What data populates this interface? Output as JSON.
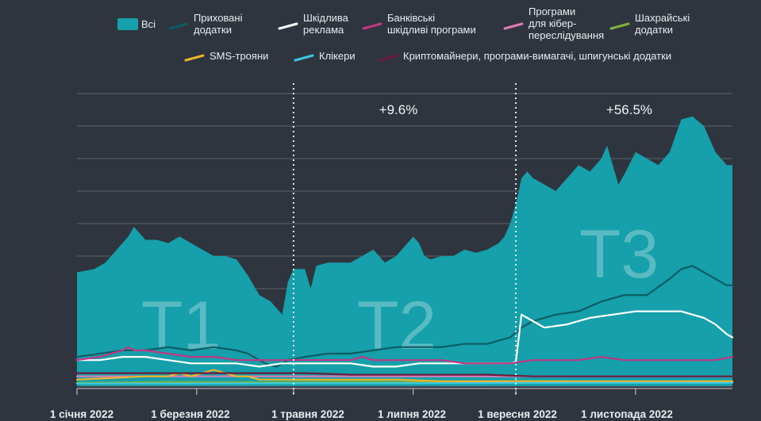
{
  "chart_data": {
    "type": "area",
    "title": "",
    "xlabel": "",
    "ylabel": "",
    "ylim": [
      0,
      90
    ],
    "grid": true,
    "legend_position": "top",
    "x_ticks": [
      "1 січня 2022",
      "1 березня 2022",
      "1 травня 2022",
      "1 липня 2022",
      "1 вересня 2022",
      "1 листопада 2022"
    ],
    "dividers": [
      "1 травня 2022",
      "1 вересня 2022"
    ],
    "periods": [
      {
        "label": "T1",
        "change": ""
      },
      {
        "label": "T2",
        "change": "+9.6%"
      },
      {
        "label": "T3",
        "change": "+56.5%"
      }
    ],
    "series": [
      {
        "name": "Всі",
        "color": "#15a0ab",
        "style": "area",
        "points": [
          [
            0,
            35
          ],
          [
            3,
            36
          ],
          [
            5,
            38
          ],
          [
            7,
            42
          ],
          [
            9,
            46
          ],
          [
            10,
            49
          ],
          [
            11,
            47
          ],
          [
            12,
            45
          ],
          [
            14,
            45
          ],
          [
            16,
            44
          ],
          [
            18,
            46
          ],
          [
            20,
            44
          ],
          [
            22,
            42
          ],
          [
            24,
            40
          ],
          [
            26,
            40
          ],
          [
            28,
            39
          ],
          [
            30,
            34
          ],
          [
            32,
            28
          ],
          [
            33,
            27
          ],
          [
            34,
            26
          ],
          [
            35,
            24
          ],
          [
            36,
            22
          ],
          [
            37,
            32
          ],
          [
            38,
            36
          ],
          [
            40,
            36
          ],
          [
            41,
            30
          ],
          [
            42,
            37
          ],
          [
            44,
            38
          ],
          [
            46,
            38
          ],
          [
            48,
            38
          ],
          [
            50,
            40
          ],
          [
            52,
            42
          ],
          [
            54,
            38
          ],
          [
            56,
            40
          ],
          [
            58,
            44
          ],
          [
            59,
            46
          ],
          [
            60,
            44
          ],
          [
            61,
            40
          ],
          [
            62,
            39
          ],
          [
            64,
            40
          ],
          [
            66,
            40
          ],
          [
            68,
            42
          ],
          [
            70,
            41
          ],
          [
            72,
            42
          ],
          [
            74,
            44
          ],
          [
            75,
            46
          ],
          [
            76,
            50
          ],
          [
            77,
            56
          ],
          [
            78,
            64
          ],
          [
            79,
            66
          ],
          [
            80,
            64
          ],
          [
            82,
            62
          ],
          [
            84,
            60
          ],
          [
            86,
            64
          ],
          [
            88,
            68
          ],
          [
            90,
            66
          ],
          [
            92,
            70
          ],
          [
            93,
            74
          ],
          [
            94,
            68
          ],
          [
            95,
            62
          ],
          [
            96,
            65
          ],
          [
            98,
            72
          ],
          [
            100,
            70
          ],
          [
            102,
            68
          ],
          [
            104,
            72
          ],
          [
            106,
            82
          ],
          [
            108,
            83
          ],
          [
            110,
            80
          ],
          [
            112,
            72
          ],
          [
            114,
            68
          ],
          [
            115,
            68
          ]
        ]
      },
      {
        "name": "Приховані додатки",
        "color": "#0d5c64",
        "style": "line",
        "points": [
          [
            0,
            9
          ],
          [
            4,
            10
          ],
          [
            8,
            11
          ],
          [
            12,
            11
          ],
          [
            16,
            12
          ],
          [
            20,
            11
          ],
          [
            24,
            12
          ],
          [
            28,
            11
          ],
          [
            30,
            10
          ],
          [
            33,
            7
          ],
          [
            35,
            6
          ],
          [
            37,
            8
          ],
          [
            40,
            9
          ],
          [
            44,
            10
          ],
          [
            48,
            10
          ],
          [
            52,
            11
          ],
          [
            56,
            12
          ],
          [
            60,
            12
          ],
          [
            64,
            12
          ],
          [
            68,
            13
          ],
          [
            72,
            13
          ],
          [
            76,
            15
          ],
          [
            78,
            18
          ],
          [
            80,
            20
          ],
          [
            84,
            22
          ],
          [
            88,
            23
          ],
          [
            92,
            26
          ],
          [
            96,
            28
          ],
          [
            100,
            28
          ],
          [
            104,
            33
          ],
          [
            106,
            36
          ],
          [
            108,
            37
          ],
          [
            110,
            35
          ],
          [
            112,
            33
          ],
          [
            114,
            31
          ],
          [
            115,
            31
          ]
        ]
      },
      {
        "name": "Шкідлива реклама",
        "color": "#ffffff",
        "style": "line",
        "points": [
          [
            0,
            8
          ],
          [
            4,
            8
          ],
          [
            8,
            9
          ],
          [
            12,
            9
          ],
          [
            16,
            8
          ],
          [
            20,
            7
          ],
          [
            24,
            7
          ],
          [
            28,
            7
          ],
          [
            32,
            6
          ],
          [
            36,
            7
          ],
          [
            40,
            7
          ],
          [
            44,
            7
          ],
          [
            48,
            7
          ],
          [
            52,
            6
          ],
          [
            56,
            6
          ],
          [
            60,
            7
          ],
          [
            64,
            7
          ],
          [
            68,
            7
          ],
          [
            72,
            7
          ],
          [
            76,
            7
          ],
          [
            77,
            7.5
          ],
          [
            78,
            22
          ],
          [
            80,
            20
          ],
          [
            82,
            18
          ],
          [
            86,
            19
          ],
          [
            90,
            21
          ],
          [
            94,
            22
          ],
          [
            98,
            23
          ],
          [
            102,
            23
          ],
          [
            106,
            23
          ],
          [
            108,
            22
          ],
          [
            110,
            21
          ],
          [
            112,
            19
          ],
          [
            114,
            16
          ],
          [
            115,
            15
          ]
        ]
      },
      {
        "name": "Банківські шкідливі програми",
        "color": "#c33684",
        "style": "line",
        "points": [
          [
            0,
            8
          ],
          [
            4,
            9
          ],
          [
            8,
            11
          ],
          [
            9,
            12
          ],
          [
            10,
            11
          ],
          [
            12,
            11
          ],
          [
            16,
            10
          ],
          [
            20,
            9
          ],
          [
            24,
            9
          ],
          [
            28,
            8
          ],
          [
            32,
            8
          ],
          [
            36,
            8
          ],
          [
            40,
            8
          ],
          [
            44,
            8
          ],
          [
            48,
            8
          ],
          [
            50,
            9
          ],
          [
            52,
            8
          ],
          [
            56,
            8
          ],
          [
            60,
            8
          ],
          [
            64,
            8
          ],
          [
            68,
            7
          ],
          [
            72,
            7
          ],
          [
            76,
            7
          ],
          [
            80,
            8
          ],
          [
            84,
            8
          ],
          [
            88,
            8
          ],
          [
            92,
            9
          ],
          [
            96,
            8
          ],
          [
            100,
            8
          ],
          [
            104,
            8
          ],
          [
            108,
            8
          ],
          [
            112,
            8
          ],
          [
            115,
            9
          ]
        ]
      },
      {
        "name": "Програми для кібер-переслідування",
        "color": "#e07cb6",
        "style": "line",
        "points": [
          [
            0,
            3
          ],
          [
            8,
            3
          ],
          [
            16,
            3
          ],
          [
            24,
            3
          ],
          [
            32,
            3
          ],
          [
            40,
            3
          ],
          [
            48,
            3
          ],
          [
            56,
            3
          ],
          [
            64,
            3
          ],
          [
            72,
            3
          ],
          [
            80,
            3
          ],
          [
            88,
            3
          ],
          [
            96,
            3
          ],
          [
            104,
            3
          ],
          [
            112,
            3
          ],
          [
            115,
            3
          ]
        ]
      },
      {
        "name": "Шахрайські додатки",
        "color": "#7fb23a",
        "style": "line",
        "points": [
          [
            0,
            1
          ],
          [
            16,
            1.3
          ],
          [
            32,
            1.2
          ],
          [
            48,
            1.4
          ],
          [
            64,
            1.2
          ],
          [
            80,
            1.5
          ],
          [
            96,
            1.4
          ],
          [
            115,
            1.5
          ]
        ]
      },
      {
        "name": "SMS-трояни",
        "color": "#f0b429",
        "style": "line",
        "points": [
          [
            0,
            2
          ],
          [
            6,
            2.5
          ],
          [
            12,
            3
          ],
          [
            16,
            3
          ],
          [
            18,
            4
          ],
          [
            20,
            3
          ],
          [
            22,
            4
          ],
          [
            24,
            5
          ],
          [
            26,
            4
          ],
          [
            28,
            3
          ],
          [
            30,
            3
          ],
          [
            32,
            2
          ],
          [
            36,
            2
          ],
          [
            40,
            2
          ],
          [
            48,
            2
          ],
          [
            56,
            2
          ],
          [
            64,
            1.5
          ],
          [
            72,
            1.5
          ],
          [
            80,
            1.5
          ],
          [
            88,
            1.5
          ],
          [
            96,
            1.5
          ],
          [
            104,
            1.5
          ],
          [
            115,
            1.5
          ]
        ]
      },
      {
        "name": "Клікери",
        "color": "#3bc9e6",
        "style": "line",
        "points": [
          [
            0,
            0.8
          ],
          [
            20,
            0.8
          ],
          [
            40,
            0.9
          ],
          [
            60,
            0.9
          ],
          [
            80,
            1
          ],
          [
            100,
            1
          ],
          [
            115,
            1
          ]
        ]
      },
      {
        "name": "Криптомайнери, програми-вимагачі, шпигунські додатки",
        "color": "#6a1c3c",
        "style": "line",
        "points": [
          [
            0,
            4
          ],
          [
            8,
            4
          ],
          [
            16,
            4
          ],
          [
            24,
            4
          ],
          [
            32,
            4
          ],
          [
            40,
            4
          ],
          [
            48,
            3.5
          ],
          [
            56,
            3.5
          ],
          [
            64,
            3.5
          ],
          [
            72,
            3.5
          ],
          [
            80,
            3
          ],
          [
            88,
            3
          ],
          [
            96,
            3
          ],
          [
            104,
            3
          ],
          [
            115,
            3
          ]
        ]
      }
    ]
  }
}
